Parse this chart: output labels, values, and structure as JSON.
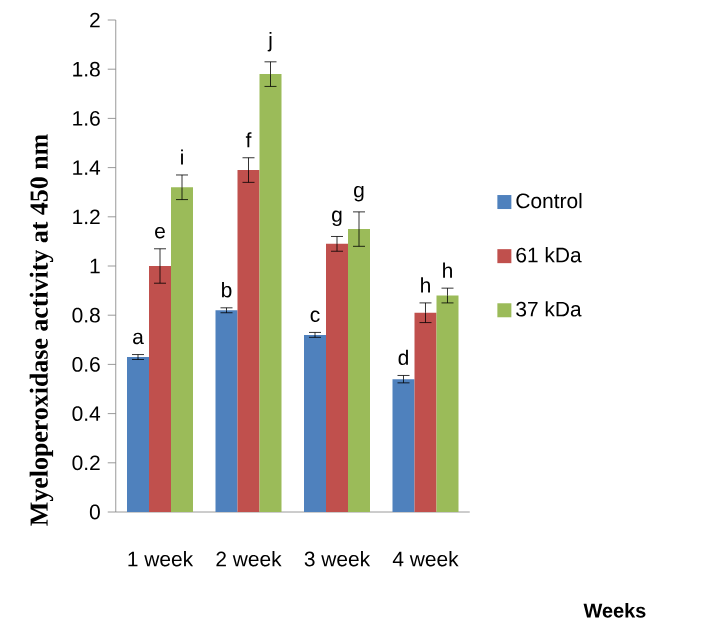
{
  "chart_data": {
    "type": "bar",
    "ylabel": "Myeloperoxidase activity  at 450 nm",
    "categories": [
      "1 week",
      "2 week",
      "3 week",
      "4 week"
    ],
    "series": [
      {
        "name": "Control",
        "color": "#4f81bd",
        "values": [
          0.63,
          0.82,
          0.72,
          0.54
        ],
        "errors": [
          0.01,
          0.01,
          0.01,
          0.015
        ]
      },
      {
        "name": "61 kDa",
        "color": "#c0504d",
        "values": [
          1.0,
          1.39,
          1.09,
          0.81
        ],
        "errors": [
          0.07,
          0.05,
          0.03,
          0.04
        ]
      },
      {
        "name": "37 kDa",
        "color": "#9bbb59",
        "values": [
          1.32,
          1.78,
          1.15,
          0.88
        ],
        "errors": [
          0.05,
          0.05,
          0.07,
          0.03
        ]
      }
    ],
    "ylim": [
      0,
      2
    ],
    "yticks": [
      0,
      0.2,
      0.4,
      0.6,
      0.8,
      1,
      1.2,
      1.4,
      1.6,
      1.8,
      2
    ],
    "legend": "right",
    "grid": false,
    "annotations": [
      "a",
      "e",
      "i",
      "b",
      "f",
      "j",
      "c",
      "g",
      "g",
      "d",
      "h",
      "h",
      "Weeks"
    ]
  }
}
